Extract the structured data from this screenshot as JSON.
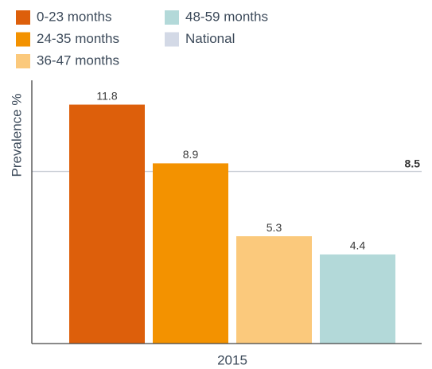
{
  "chart_data": {
    "type": "bar",
    "y_label": "Prevalence %",
    "categories": [
      "2015"
    ],
    "series": [
      {
        "name": "0-23 months",
        "color": "#dd5f0b",
        "values": [
          11.8
        ]
      },
      {
        "name": "24-35 months",
        "color": "#f39200",
        "values": [
          8.9
        ]
      },
      {
        "name": "36-47 months",
        "color": "#fbc97c",
        "values": [
          5.3
        ]
      },
      {
        "name": "48-59 months",
        "color": "#b3d9d9",
        "values": [
          4.4
        ]
      },
      {
        "name": "National",
        "color": "#d3d9e6",
        "style": "reference-line",
        "values": [
          8.5
        ]
      }
    ],
    "ylim": [
      0,
      13
    ],
    "legend": "top-left"
  }
}
